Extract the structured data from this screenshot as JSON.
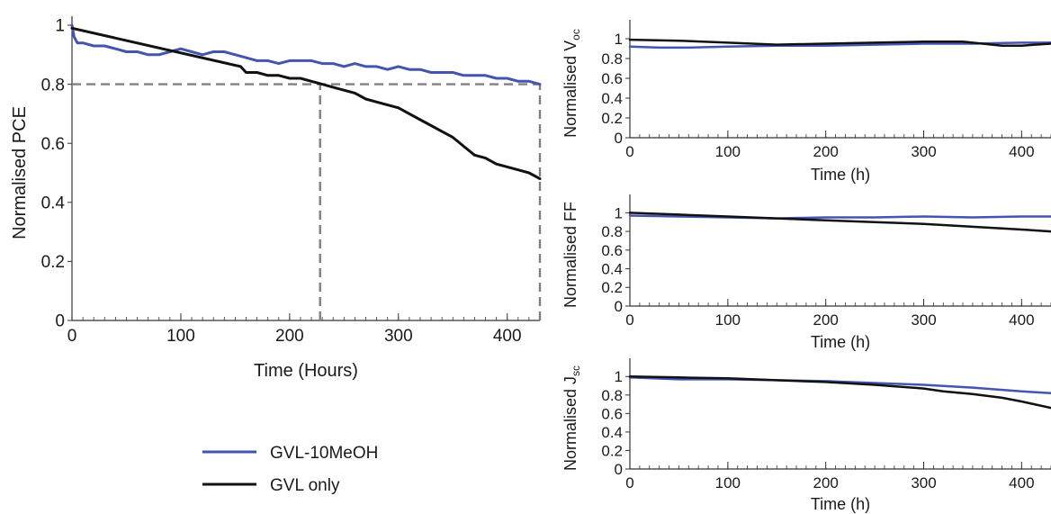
{
  "colors": {
    "GVL-10MeOH": "#4455b0",
    "GVL only": "#111111",
    "reference": "#808080"
  },
  "legend": [
    {
      "name": "GVL-10MeOH",
      "color": "#4455b0"
    },
    {
      "name": "GVL only",
      "color": "#111111"
    }
  ],
  "chart_data": [
    {
      "type": "line",
      "id": "pce",
      "title": "",
      "xlabel": "Time (Hours)",
      "ylabel": "Normalised PCE",
      "xlim": [
        0,
        430
      ],
      "ylim": [
        0,
        1
      ],
      "xticks": [
        0,
        100,
        200,
        300,
        400
      ],
      "yticks": [
        0,
        0.2,
        0.4,
        0.6,
        0.8,
        1
      ],
      "ytick_labels": [
        "0",
        "0.2",
        "0.4",
        "0.6",
        "0.8",
        "1"
      ],
      "grid": false,
      "reference_lines": [
        {
          "orientation": "horizontal",
          "y": 0.8,
          "x_from": 0,
          "x_to": 430,
          "style": "dashed"
        },
        {
          "orientation": "vertical",
          "x": 228,
          "y_from": 0,
          "y_to": 0.8,
          "style": "dashed"
        },
        {
          "orientation": "vertical",
          "x": 430,
          "y_from": 0,
          "y_to": 0.8,
          "style": "dashed"
        }
      ],
      "series": [
        {
          "name": "GVL-10MeOH",
          "color": "#4455b0",
          "x": [
            0,
            2,
            5,
            10,
            20,
            30,
            40,
            50,
            60,
            70,
            80,
            90,
            100,
            110,
            120,
            130,
            140,
            150,
            160,
            170,
            180,
            190,
            200,
            210,
            220,
            230,
            240,
            250,
            260,
            270,
            280,
            290,
            300,
            310,
            320,
            330,
            340,
            350,
            360,
            370,
            380,
            390,
            400,
            410,
            420,
            430
          ],
          "y": [
            1.0,
            0.96,
            0.94,
            0.94,
            0.93,
            0.93,
            0.92,
            0.91,
            0.91,
            0.9,
            0.9,
            0.91,
            0.92,
            0.91,
            0.9,
            0.91,
            0.91,
            0.9,
            0.89,
            0.88,
            0.88,
            0.87,
            0.88,
            0.88,
            0.88,
            0.87,
            0.87,
            0.86,
            0.87,
            0.86,
            0.86,
            0.85,
            0.86,
            0.85,
            0.85,
            0.84,
            0.84,
            0.84,
            0.83,
            0.83,
            0.83,
            0.82,
            0.82,
            0.81,
            0.81,
            0.8
          ]
        },
        {
          "name": "GVL only",
          "color": "#111111",
          "x": [
            0,
            155,
            160,
            170,
            180,
            190,
            200,
            210,
            220,
            230,
            240,
            250,
            260,
            270,
            280,
            290,
            300,
            310,
            320,
            330,
            340,
            350,
            360,
            370,
            380,
            390,
            400,
            410,
            420,
            430
          ],
          "y": [
            0.99,
            0.86,
            0.84,
            0.84,
            0.83,
            0.83,
            0.82,
            0.82,
            0.81,
            0.8,
            0.79,
            0.78,
            0.77,
            0.75,
            0.74,
            0.73,
            0.72,
            0.7,
            0.68,
            0.66,
            0.64,
            0.62,
            0.59,
            0.56,
            0.55,
            0.53,
            0.52,
            0.51,
            0.5,
            0.48
          ]
        }
      ]
    },
    {
      "type": "line",
      "id": "voc",
      "title": "",
      "xlabel": "Time (h)",
      "ylabel": "Normalised V",
      "ylabel_sub": "oc",
      "xlim": [
        0,
        430
      ],
      "ylim": [
        0,
        1.1
      ],
      "xticks": [
        0,
        100,
        200,
        300,
        400
      ],
      "yticks": [
        0,
        0.2,
        0.4,
        0.6,
        0.8,
        1
      ],
      "ytick_labels": [
        "0",
        "0.2",
        "0.4",
        "0.6",
        "0.8",
        "1"
      ],
      "grid": false,
      "series": [
        {
          "name": "GVL-10MeOH",
          "color": "#4455b0",
          "x": [
            0,
            30,
            60,
            100,
            150,
            200,
            250,
            300,
            350,
            400,
            430
          ],
          "y": [
            0.92,
            0.91,
            0.91,
            0.92,
            0.93,
            0.93,
            0.94,
            0.95,
            0.95,
            0.96,
            0.96
          ]
        },
        {
          "name": "GVL only",
          "color": "#111111",
          "x": [
            0,
            50,
            100,
            150,
            200,
            250,
            300,
            340,
            360,
            380,
            400,
            430
          ],
          "y": [
            0.99,
            0.98,
            0.96,
            0.94,
            0.95,
            0.96,
            0.97,
            0.97,
            0.95,
            0.93,
            0.93,
            0.95
          ]
        }
      ]
    },
    {
      "type": "line",
      "id": "ff",
      "title": "",
      "xlabel": "Time (h)",
      "ylabel": "Normalised FF",
      "xlim": [
        0,
        430
      ],
      "ylim": [
        0,
        1.1
      ],
      "xticks": [
        0,
        100,
        200,
        300,
        400
      ],
      "yticks": [
        0,
        0.2,
        0.4,
        0.6,
        0.8,
        1
      ],
      "ytick_labels": [
        "0",
        "0.2",
        "0.4",
        "0.6",
        "0.8",
        "1"
      ],
      "grid": false,
      "series": [
        {
          "name": "GVL-10MeOH",
          "color": "#4455b0",
          "x": [
            0,
            50,
            100,
            150,
            200,
            250,
            300,
            350,
            400,
            430
          ],
          "y": [
            0.97,
            0.96,
            0.95,
            0.94,
            0.95,
            0.95,
            0.96,
            0.95,
            0.96,
            0.96
          ]
        },
        {
          "name": "GVL only",
          "color": "#111111",
          "x": [
            0,
            50,
            100,
            150,
            200,
            250,
            300,
            350,
            400,
            430
          ],
          "y": [
            1.0,
            0.98,
            0.96,
            0.94,
            0.92,
            0.9,
            0.88,
            0.85,
            0.82,
            0.8
          ]
        }
      ]
    },
    {
      "type": "line",
      "id": "jsc",
      "title": "",
      "xlabel": "Time (h)",
      "ylabel": "Normalised J",
      "ylabel_sub": "sc",
      "xlim": [
        0,
        430
      ],
      "ylim": [
        0,
        1.1
      ],
      "xticks": [
        0,
        100,
        200,
        300,
        400
      ],
      "yticks": [
        0,
        0.2,
        0.4,
        0.6,
        0.8,
        1
      ],
      "ytick_labels": [
        "0",
        "0.2",
        "0.4",
        "0.6",
        "0.8",
        "1"
      ],
      "grid": false,
      "series": [
        {
          "name": "GVL-10MeOH",
          "color": "#4455b0",
          "x": [
            0,
            50,
            100,
            150,
            200,
            250,
            300,
            350,
            400,
            430
          ],
          "y": [
            0.99,
            0.97,
            0.97,
            0.96,
            0.95,
            0.93,
            0.91,
            0.88,
            0.84,
            0.82
          ]
        },
        {
          "name": "GVL only",
          "color": "#111111",
          "x": [
            0,
            50,
            100,
            150,
            200,
            250,
            300,
            320,
            350,
            380,
            400,
            430
          ],
          "y": [
            1.0,
            0.99,
            0.98,
            0.96,
            0.94,
            0.91,
            0.87,
            0.84,
            0.81,
            0.77,
            0.73,
            0.66
          ]
        }
      ]
    }
  ]
}
